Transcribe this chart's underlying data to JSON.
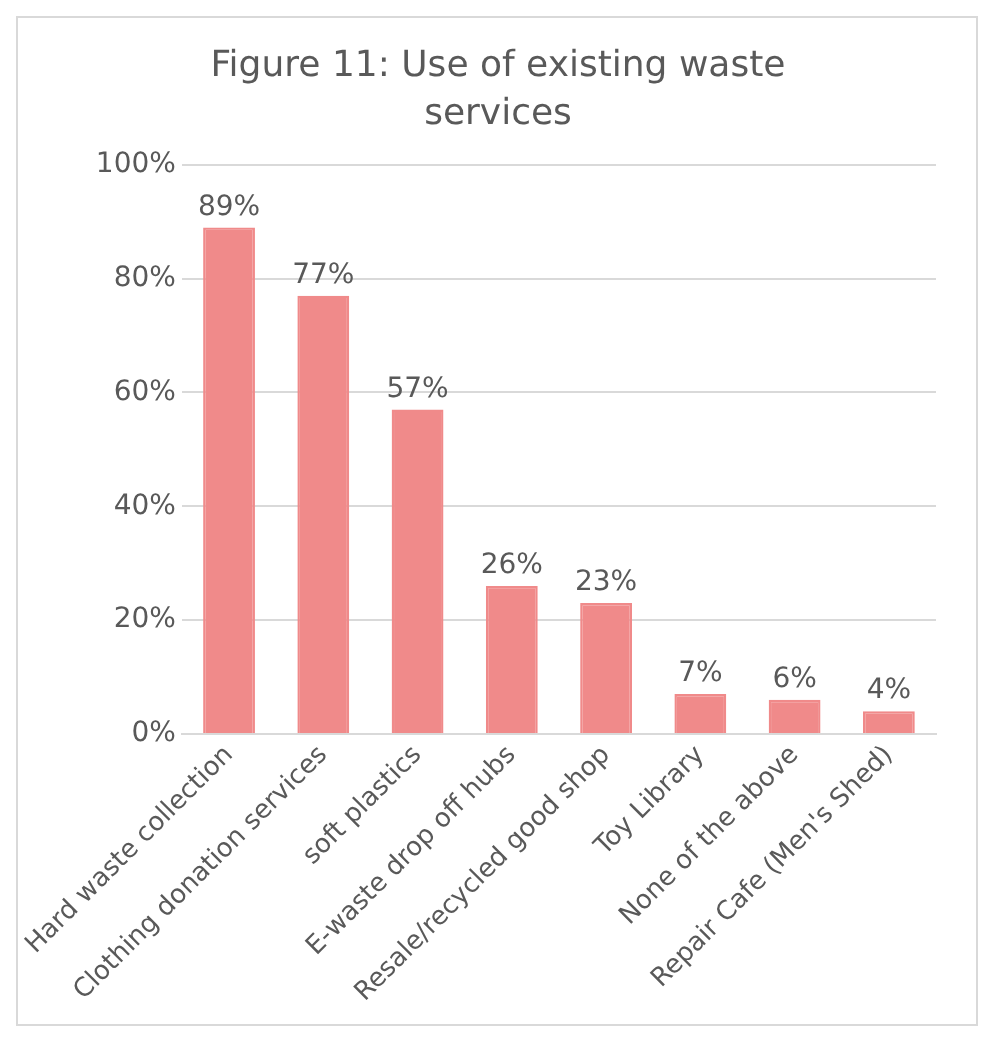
{
  "chart_data": {
    "type": "bar",
    "title": "Figure 11: Use of existing waste services",
    "categories": [
      "Hard waste collection",
      "Clothing donation services",
      "soft plastics",
      "E-waste drop off hubs",
      "Resale/recycled good shop",
      "Toy Library",
      "None of the above",
      "Repair Cafe (Men's Shed)"
    ],
    "values": [
      89,
      77,
      57,
      26,
      23,
      7,
      6,
      4
    ],
    "value_labels": [
      "89%",
      "77%",
      "57%",
      "26%",
      "23%",
      "7%",
      "6%",
      "4%"
    ],
    "color": "#f08a8a",
    "ylim": [
      0,
      100
    ],
    "yticks": [
      {
        "value": 0,
        "label": "0%"
      },
      {
        "value": 20,
        "label": "20%"
      },
      {
        "value": 40,
        "label": "40%"
      },
      {
        "value": 60,
        "label": "60%"
      },
      {
        "value": 80,
        "label": "80%"
      },
      {
        "value": 100,
        "label": "100%"
      }
    ],
    "grid": "y"
  }
}
